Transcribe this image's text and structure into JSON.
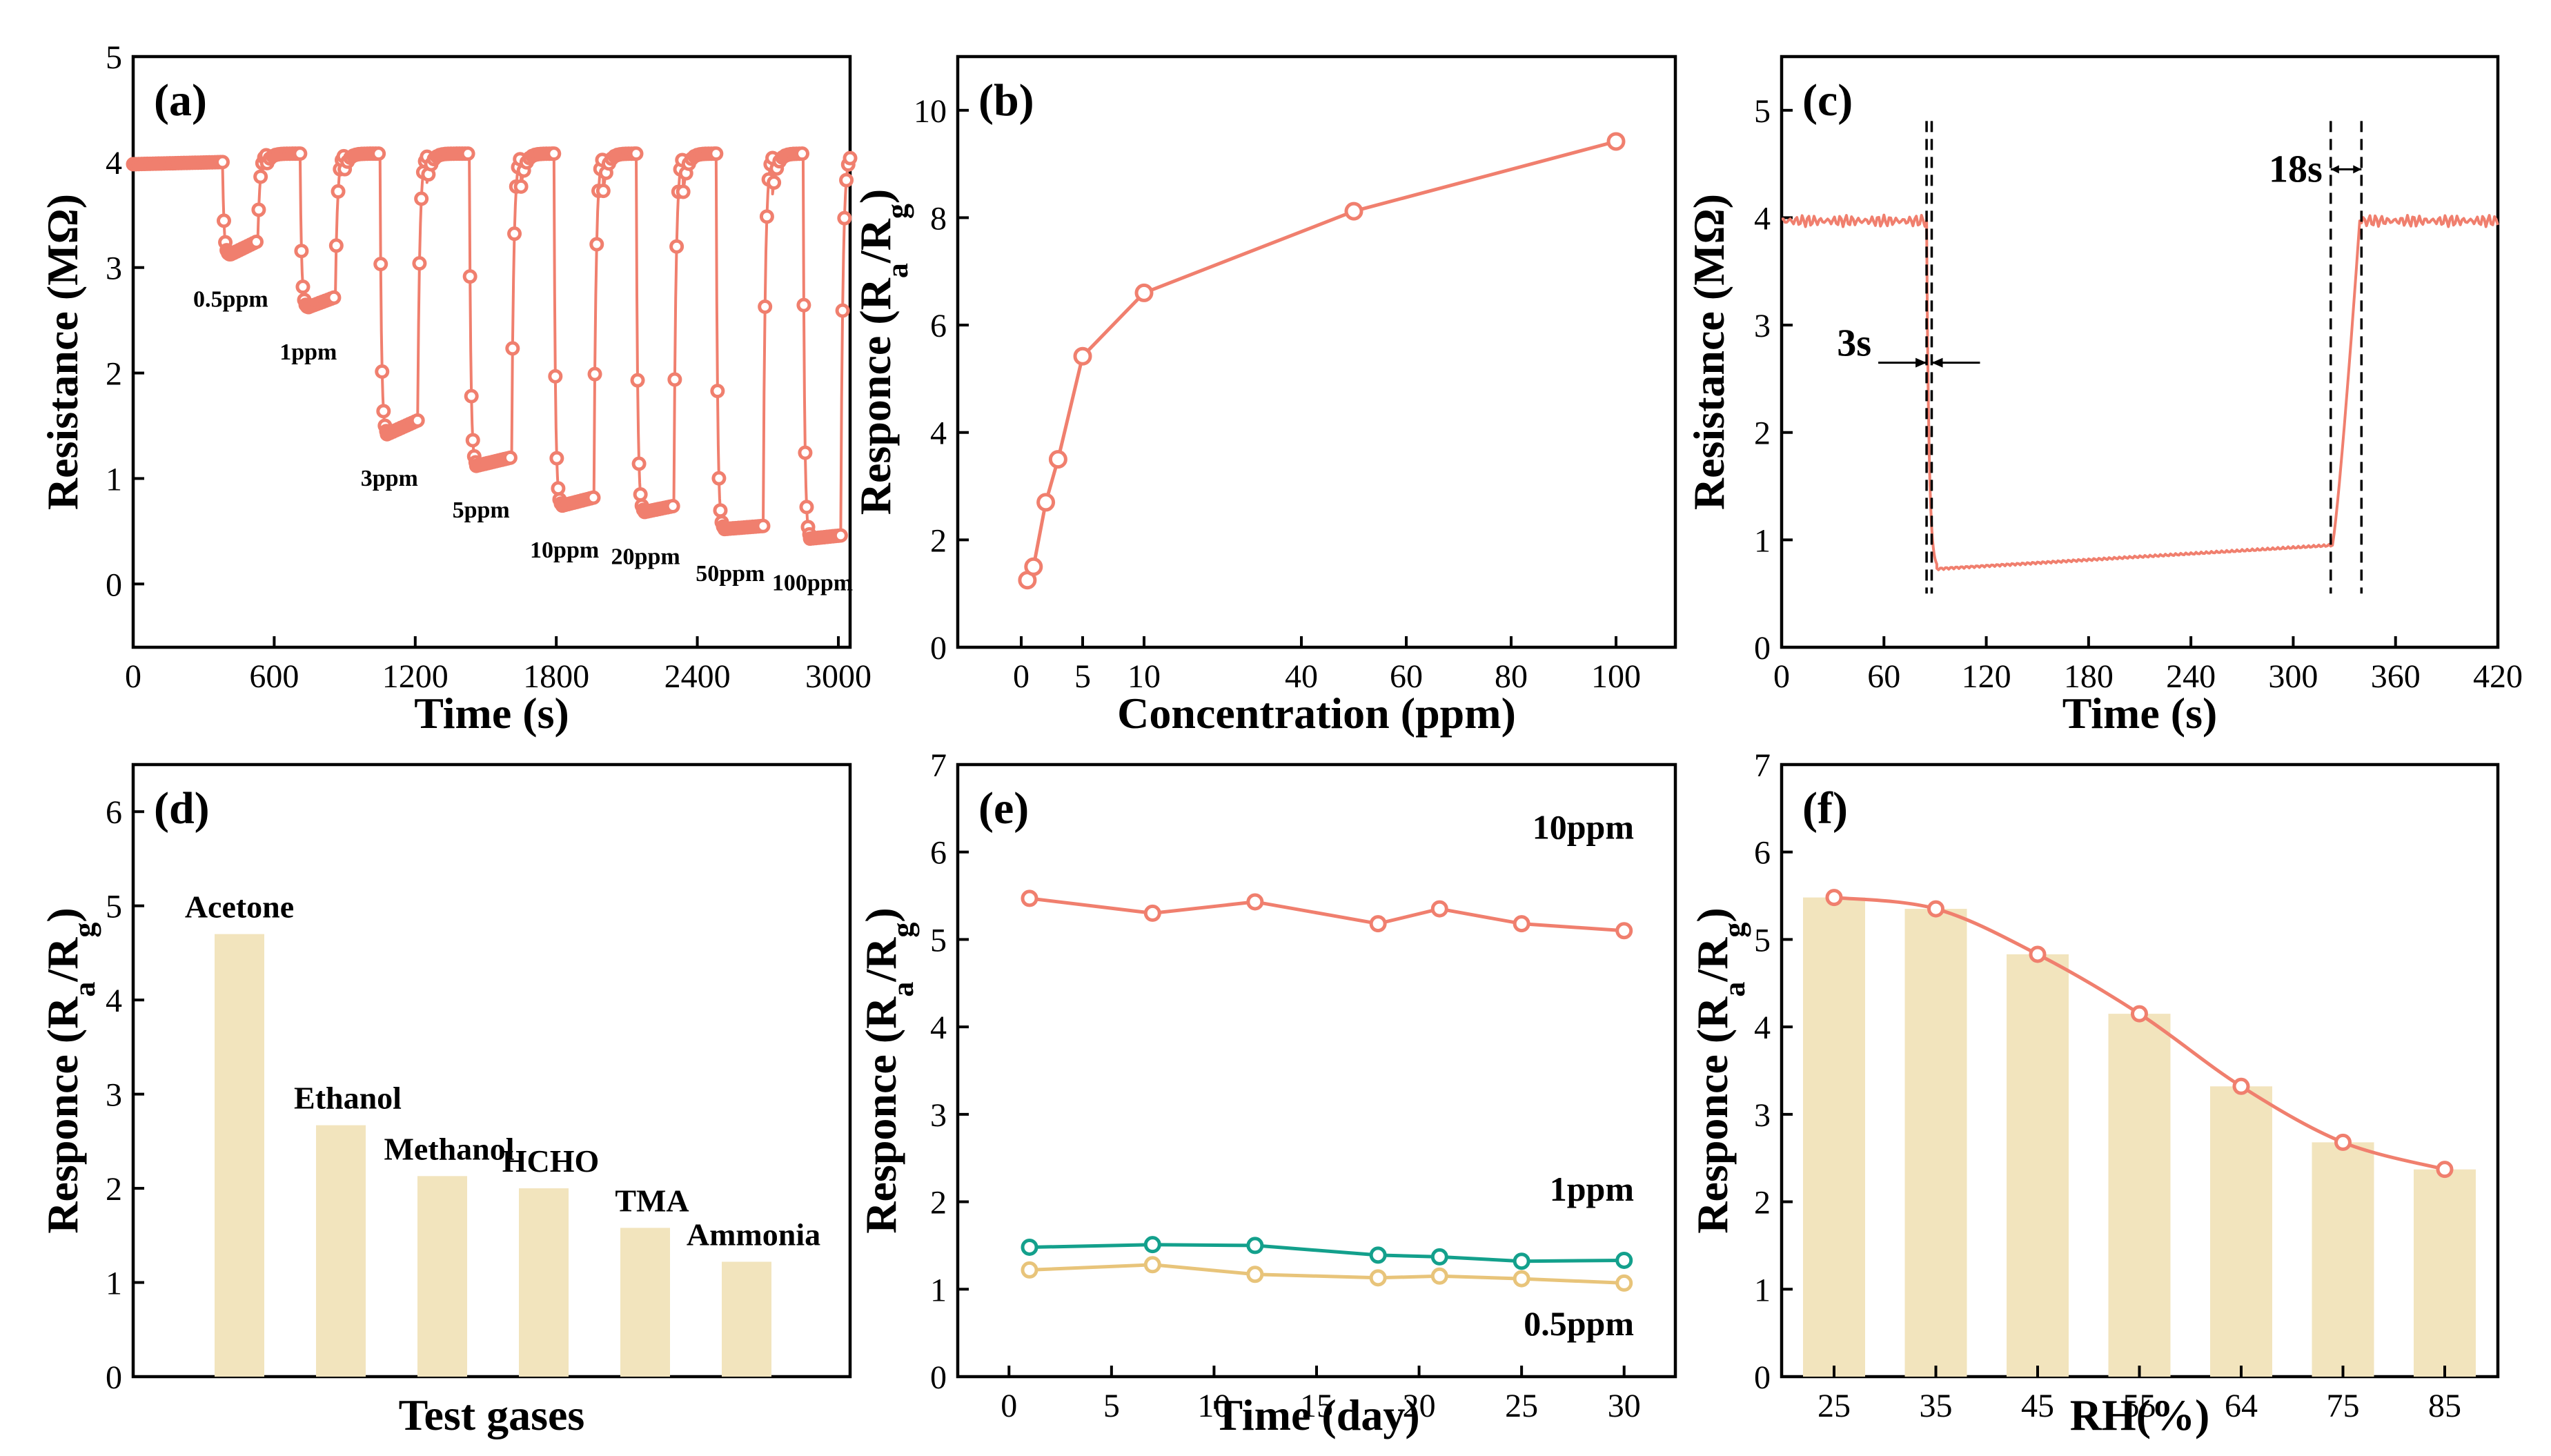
{
  "chart_data": [
    {
      "id": "a",
      "type": "line",
      "panel_label": "(a)",
      "xlabel": "Time (s)",
      "ylabel": "Resistance (MΩ)",
      "xlim": [
        0,
        3050
      ],
      "ylim": [
        -0.6,
        5
      ],
      "xticks": [
        0,
        600,
        1200,
        1800,
        2400,
        3000
      ],
      "yticks": [
        0,
        1,
        2,
        3,
        4,
        5
      ],
      "color": "#f07f6e",
      "baseline": 3.98,
      "recovered": 4.08,
      "exposures": [
        {
          "label": "0.5ppm",
          "start": 380,
          "end": 530,
          "min": 3.12,
          "level_end": 3.25
        },
        {
          "label": "1ppm",
          "start": 710,
          "end": 860,
          "min": 2.62,
          "level_end": 2.72
        },
        {
          "label": "3ppm",
          "start": 1050,
          "end": 1210,
          "min": 1.42,
          "level_end": 1.55
        },
        {
          "label": "5ppm",
          "start": 1430,
          "end": 1610,
          "min": 1.12,
          "level_end": 1.2
        },
        {
          "label": "10ppm",
          "start": 1790,
          "end": 1960,
          "min": 0.74,
          "level_end": 0.82
        },
        {
          "label": "20ppm",
          "start": 2140,
          "end": 2300,
          "min": 0.68,
          "level_end": 0.74
        },
        {
          "label": "50ppm",
          "start": 2480,
          "end": 2680,
          "min": 0.52,
          "level_end": 0.55
        },
        {
          "label": "100ppm",
          "start": 2850,
          "end": 3010,
          "min": 0.43,
          "level_end": 0.46
        }
      ]
    },
    {
      "id": "b",
      "type": "line",
      "panel_label": "(b)",
      "xlabel": "Concentration (ppm)",
      "ylabel": "Responce (R_a/R_g)",
      "ylim": [
        0,
        11
      ],
      "yticks": [
        0,
        2,
        4,
        6,
        8,
        10
      ],
      "xtick_labels": [
        "0",
        "5",
        "10",
        "40",
        "60",
        "80",
        "100"
      ],
      "x_scale_note": "broken axis: 0-10 linear segment, 10-100 linear segment",
      "color": "#f07f6e",
      "x": [
        0.5,
        1,
        2,
        3,
        5,
        10,
        50,
        100
      ],
      "y": [
        1.25,
        1.5,
        2.7,
        3.5,
        5.42,
        6.6,
        8.12,
        9.42
      ]
    },
    {
      "id": "c",
      "type": "line",
      "panel_label": "(c)",
      "xlabel": "Time (s)",
      "ylabel": "Resistance (MΩ)",
      "xlim": [
        0,
        420
      ],
      "ylim": [
        0,
        5.5
      ],
      "xticks": [
        0,
        60,
        120,
        180,
        240,
        300,
        360,
        420
      ],
      "yticks": [
        0,
        1,
        2,
        3,
        4,
        5
      ],
      "color": "#f07f6e",
      "baseline": 3.97,
      "gas_on": 85,
      "gas_off": 323,
      "min_level": 0.73,
      "level_before_off": 0.95,
      "response_time_label": "3s",
      "recovery_time_label": "18s",
      "dashed_lines": [
        85,
        88,
        322,
        340
      ]
    },
    {
      "id": "d",
      "type": "bar",
      "panel_label": "(d)",
      "xlabel": "Test gases",
      "ylabel": "Responce (R_a/R_g)",
      "ylim": [
        0,
        6.5
      ],
      "yticks": [
        0,
        1,
        2,
        3,
        4,
        5,
        6
      ],
      "color": "#f2e4bd",
      "categories": [
        "Acetone",
        "Ethanol",
        "Methanol",
        "HCHO",
        "TMA",
        "Ammonia"
      ],
      "values": [
        4.7,
        2.67,
        2.13,
        2.0,
        1.58,
        1.22
      ]
    },
    {
      "id": "e",
      "type": "line",
      "panel_label": "(e)",
      "xlabel": "Time (day)",
      "ylabel": "Responce (R_a/R_g)",
      "xlim": [
        -2.5,
        32.5
      ],
      "ylim": [
        0,
        7
      ],
      "xticks": [
        0,
        5,
        10,
        15,
        20,
        25,
        30
      ],
      "yticks": [
        0,
        1,
        2,
        3,
        4,
        5,
        6,
        7
      ],
      "x": [
        1,
        7,
        12,
        18,
        21,
        25,
        30
      ],
      "series": [
        {
          "name": "10ppm",
          "color": "#f07f6e",
          "values": [
            5.47,
            5.3,
            5.43,
            5.18,
            5.35,
            5.18,
            5.1
          ]
        },
        {
          "name": "1ppm",
          "color": "#13a08c",
          "values": [
            1.48,
            1.51,
            1.5,
            1.39,
            1.37,
            1.32,
            1.33
          ]
        },
        {
          "name": "0.5ppm",
          "color": "#e8c47a",
          "values": [
            1.22,
            1.28,
            1.17,
            1.13,
            1.15,
            1.12,
            1.07
          ]
        }
      ]
    },
    {
      "id": "f",
      "type": "bar",
      "panel_label": "(f)",
      "xlabel": "RH(%)",
      "ylabel": "Responce (R_a/R_g)",
      "ylim": [
        0,
        7
      ],
      "yticks": [
        0,
        1,
        2,
        3,
        4,
        5,
        6,
        7
      ],
      "categories": [
        "25",
        "35",
        "45",
        "55",
        "64",
        "75",
        "85"
      ],
      "values": [
        5.48,
        5.35,
        4.83,
        4.15,
        3.32,
        2.68,
        2.37
      ],
      "bar_color": "#f2e4bd",
      "line_color": "#f07f6e"
    }
  ]
}
